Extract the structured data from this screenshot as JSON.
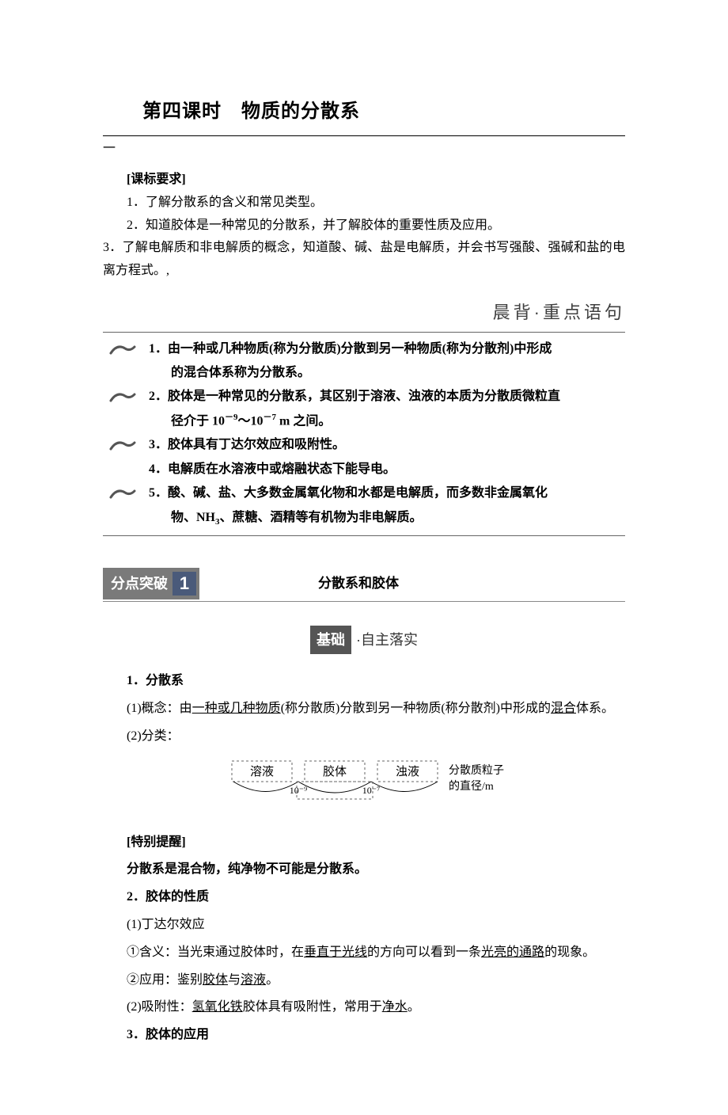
{
  "lesson": {
    "title": "第四课时　物质的分散系",
    "continuation": "一"
  },
  "requirements": {
    "header": "[课标要求]",
    "items": [
      "1．了解分散系的含义和常见类型。",
      "2．知道胶体是一种常见的分散系，并了解胶体的重要性质及应用。",
      "3．了解电解质和非电解质的概念，知道酸、碱、盐是电解质，并会书写强酸、强碱和盐的电离方程式。,"
    ]
  },
  "morning": {
    "header": "晨背·重点语句",
    "points": [
      {
        "num": "1．",
        "text": "由一种或几种物质(称为分散质)分散到另一种物质(称为分散剂)中形成的混合体系称为分散系。",
        "hasFlourish": true,
        "multiLine": true
      },
      {
        "num": "2．",
        "text": "胶体是一种常见的分散系，其区别于溶液、浊液的本质为分散质微粒直径介于 10⁻⁹～10⁻⁷ m 之间。",
        "hasFlourish": true,
        "multiLine": true
      },
      {
        "num": "3．",
        "text": "胶体具有丁达尔效应和吸附性。",
        "hasFlourish": true,
        "multiLine": false
      },
      {
        "num": "4．",
        "text": "电解质在水溶液中或熔融状态下能导电。",
        "hasFlourish": false,
        "multiLine": false
      },
      {
        "num": "5．",
        "text": "酸、碱、盐、大多数金属氧化物和水都是电解质，而多数非金属氧化物、NH₃、蔗糖、酒精等有机物为非电解质。",
        "hasFlourish": true,
        "multiLine": true
      }
    ]
  },
  "section1": {
    "badge_text": "分点突破",
    "badge_num": "1",
    "title": "分散系和胶体"
  },
  "subsection": {
    "badge": "基础",
    "text": "·自主落实"
  },
  "content": {
    "h1": "1．分散系",
    "p1_prefix": "(1)概念：由",
    "p1_u1": "一种或几种物质",
    "p1_mid1": "(称分散质)分散到另一种物质(称分散剂)中形成的",
    "p1_u2": "混合",
    "p1_suffix": "体系。",
    "p2": "(2)分类：",
    "diagram": {
      "labels": [
        "溶液",
        "胶体",
        "浊液"
      ],
      "right_label_1": "分散质粒子",
      "right_label_2": "的直径/m",
      "ticks": [
        "10⁻⁹",
        "10⁻⁷"
      ],
      "colors": {
        "line": "#000000",
        "dash": "#666666"
      }
    },
    "reminder_h": "[特别提醒]",
    "reminder_t": "分散系是混合物，纯净物不可能是分散系。",
    "h2": "2．胶体的性质",
    "p3": "(1)丁达尔效应",
    "p4_prefix": "①含义：当光束通过胶体时，在",
    "p4_u1": "垂直于光线",
    "p4_mid": "的方向可以看到一条",
    "p4_u2": "光亮的通路",
    "p4_suffix": "的现象。",
    "p5_prefix": "②应用：鉴别",
    "p5_u1": "胶体",
    "p5_mid": "与",
    "p5_u2": "溶液",
    "p5_suffix": "。",
    "p6_prefix": "(2)吸附性：",
    "p6_u1": "氢氧化铁",
    "p6_mid": "胶体具有吸附性，常用于",
    "p6_u2": "净水",
    "p6_suffix": "。",
    "h3": "3．胶体的应用"
  },
  "styles": {
    "page_bg": "#ffffff",
    "text_color": "#000000",
    "badge_bg": "#7a7a7a",
    "badge_num_bg": "#4a5a7a",
    "sub_badge_bg": "#555555"
  }
}
